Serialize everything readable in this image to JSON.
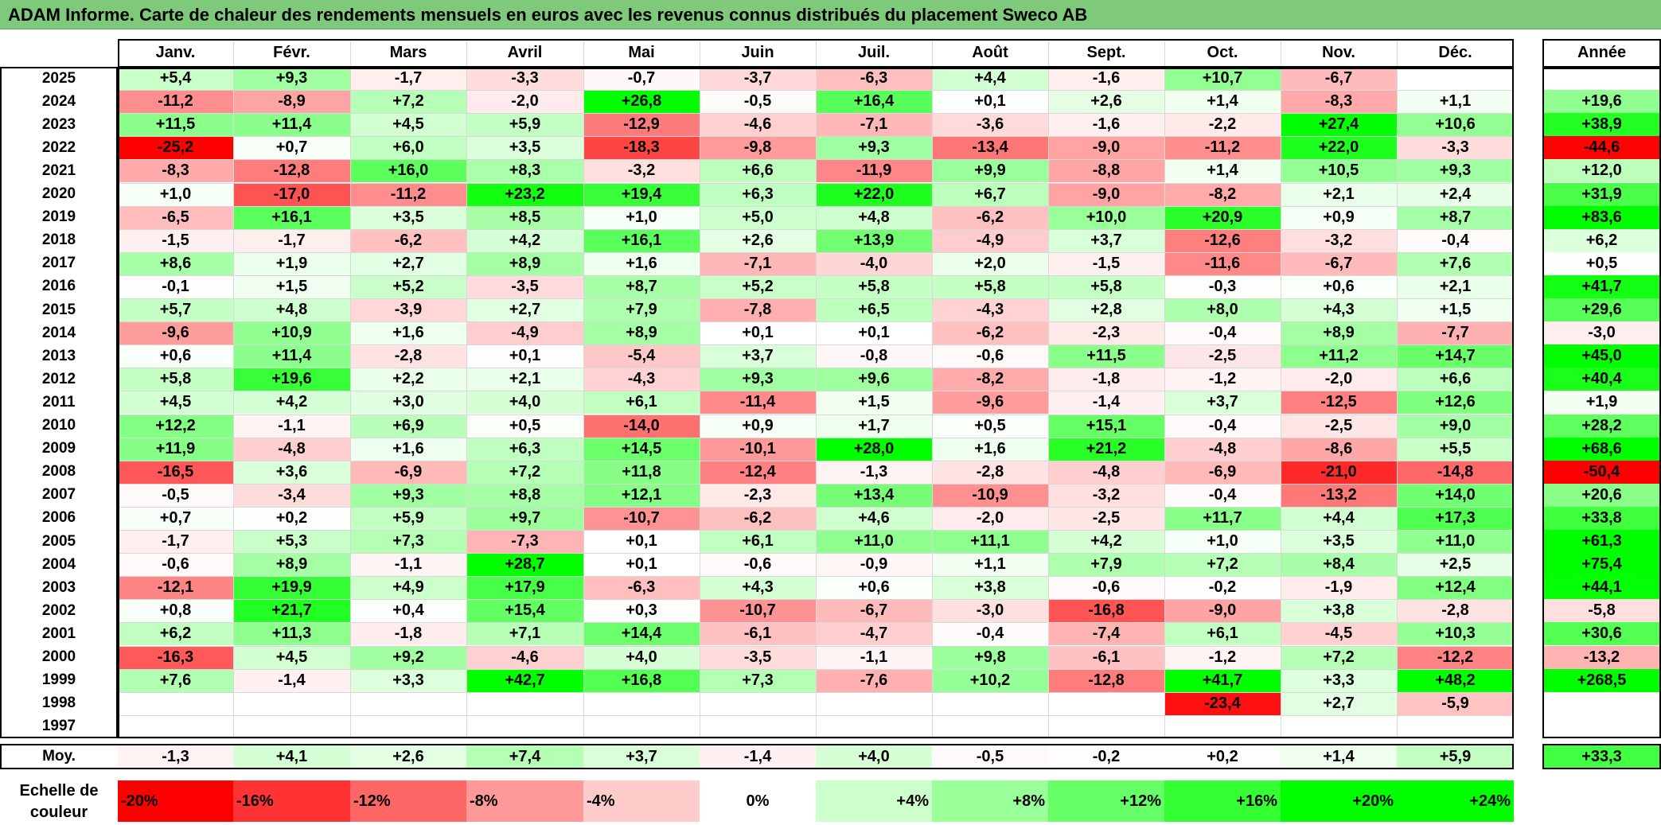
{
  "title": "ADAM Informe. Carte de chaleur des rendements mensuels en euros avec les revenus connus distribués du placement Sweco AB",
  "chart_data": {
    "type": "heatmap",
    "title": "ADAM Informe. Carte de chaleur des rendements mensuels en euros avec les revenus connus distribués du placement Sweco AB",
    "columns": [
      "Janv.",
      "Févr.",
      "Mars",
      "Avril",
      "Mai",
      "Juin",
      "Juil.",
      "Août",
      "Sept.",
      "Oct.",
      "Nov.",
      "Déc."
    ],
    "year_header": "Année",
    "rows": [
      {
        "year": "2025",
        "values": [
          "+5,4",
          "+9,3",
          "-1,7",
          "-3,3",
          "-0,7",
          "-3,7",
          "-6,3",
          "+4,4",
          "-1,6",
          "+10,7",
          "-6,7",
          ""
        ],
        "annual": ""
      },
      {
        "year": "2024",
        "values": [
          "-11,2",
          "-8,9",
          "+7,2",
          "-2,0",
          "+26,8",
          "-0,5",
          "+16,4",
          "+0,1",
          "+2,6",
          "+1,4",
          "-8,3",
          "+1,1"
        ],
        "annual": "+19,6"
      },
      {
        "year": "2023",
        "values": [
          "+11,5",
          "+11,4",
          "+4,5",
          "+5,9",
          "-12,9",
          "-4,6",
          "-7,1",
          "-3,6",
          "-1,6",
          "-2,2",
          "+27,4",
          "+10,6"
        ],
        "annual": "+38,9"
      },
      {
        "year": "2022",
        "values": [
          "-25,2",
          "+0,7",
          "+6,0",
          "+3,5",
          "-18,3",
          "-9,8",
          "+9,3",
          "-13,4",
          "-9,0",
          "-11,2",
          "+22,0",
          "-3,3"
        ],
        "annual": "-44,6"
      },
      {
        "year": "2021",
        "values": [
          "-8,3",
          "-12,8",
          "+16,0",
          "+8,3",
          "-3,2",
          "+6,6",
          "-11,9",
          "+9,9",
          "-8,8",
          "+1,4",
          "+10,5",
          "+9,3"
        ],
        "annual": "+12,0"
      },
      {
        "year": "2020",
        "values": [
          "+1,0",
          "-17,0",
          "-11,2",
          "+23,2",
          "+19,4",
          "+6,3",
          "+22,0",
          "+6,7",
          "-9,0",
          "-8,2",
          "+2,1",
          "+2,4"
        ],
        "annual": "+31,9"
      },
      {
        "year": "2019",
        "values": [
          "-6,5",
          "+16,1",
          "+3,5",
          "+8,5",
          "+1,0",
          "+5,0",
          "+4,8",
          "-6,2",
          "+10,0",
          "+20,9",
          "+0,9",
          "+8,7"
        ],
        "annual": "+83,6"
      },
      {
        "year": "2018",
        "values": [
          "-1,5",
          "-1,7",
          "-6,2",
          "+4,2",
          "+16,1",
          "+2,6",
          "+13,9",
          "-4,9",
          "+3,7",
          "-12,6",
          "-3,2",
          "-0,4"
        ],
        "annual": "+6,2"
      },
      {
        "year": "2017",
        "values": [
          "+8,6",
          "+1,9",
          "+2,7",
          "+8,9",
          "+1,6",
          "-7,1",
          "-4,0",
          "+2,0",
          "-1,5",
          "-11,6",
          "-6,7",
          "+7,6"
        ],
        "annual": "+0,5"
      },
      {
        "year": "2016",
        "values": [
          "-0,1",
          "+1,5",
          "+5,2",
          "-3,5",
          "+8,7",
          "+5,2",
          "+5,8",
          "+5,8",
          "+5,8",
          "-0,3",
          "+0,6",
          "+2,1"
        ],
        "annual": "+41,7"
      },
      {
        "year": "2015",
        "values": [
          "+5,7",
          "+4,8",
          "-3,9",
          "+2,7",
          "+7,9",
          "-7,8",
          "+6,5",
          "-4,3",
          "+2,8",
          "+8,0",
          "+4,3",
          "+1,5"
        ],
        "annual": "+29,6"
      },
      {
        "year": "2014",
        "values": [
          "-9,6",
          "+10,9",
          "+1,6",
          "-4,9",
          "+8,9",
          "+0,1",
          "+0,1",
          "-6,2",
          "-2,3",
          "-0,4",
          "+8,9",
          "-7,7"
        ],
        "annual": "-3,0"
      },
      {
        "year": "2013",
        "values": [
          "+0,6",
          "+11,4",
          "-2,8",
          "+0,1",
          "-5,4",
          "+3,7",
          "-0,8",
          "-0,6",
          "+11,5",
          "-2,5",
          "+11,2",
          "+14,7"
        ],
        "annual": "+45,0"
      },
      {
        "year": "2012",
        "values": [
          "+5,8",
          "+19,6",
          "+2,2",
          "+2,1",
          "-4,3",
          "+9,3",
          "+9,6",
          "-8,2",
          "-1,8",
          "-1,2",
          "-2,0",
          "+6,6"
        ],
        "annual": "+40,4"
      },
      {
        "year": "2011",
        "values": [
          "+4,5",
          "+4,2",
          "+3,0",
          "+4,0",
          "+6,1",
          "-11,4",
          "+1,5",
          "-9,6",
          "-1,4",
          "+3,7",
          "-12,5",
          "+12,6"
        ],
        "annual": "+1,9"
      },
      {
        "year": "2010",
        "values": [
          "+12,2",
          "-1,1",
          "+6,9",
          "+0,5",
          "-14,0",
          "+0,9",
          "+1,7",
          "+0,5",
          "+15,1",
          "-0,4",
          "-2,5",
          "+9,0"
        ],
        "annual": "+28,2"
      },
      {
        "year": "2009",
        "values": [
          "+11,9",
          "-4,8",
          "+1,6",
          "+6,3",
          "+14,5",
          "-10,1",
          "+28,0",
          "+1,6",
          "+21,2",
          "-4,8",
          "-8,6",
          "+5,5"
        ],
        "annual": "+68,6"
      },
      {
        "year": "2008",
        "values": [
          "-16,5",
          "+3,6",
          "-6,9",
          "+7,2",
          "+11,8",
          "-12,4",
          "-1,3",
          "-2,8",
          "-4,8",
          "-6,9",
          "-21,0",
          "-14,8"
        ],
        "annual": "-50,4"
      },
      {
        "year": "2007",
        "values": [
          "-0,5",
          "-3,4",
          "+9,3",
          "+8,8",
          "+12,1",
          "-2,3",
          "+13,4",
          "-10,9",
          "-3,2",
          "-0,4",
          "-13,2",
          "+14,0"
        ],
        "annual": "+20,6"
      },
      {
        "year": "2006",
        "values": [
          "+0,7",
          "+0,2",
          "+5,9",
          "+9,7",
          "-10,7",
          "-6,2",
          "+4,6",
          "-2,0",
          "-2,5",
          "+11,7",
          "+4,4",
          "+17,3"
        ],
        "annual": "+33,8"
      },
      {
        "year": "2005",
        "values": [
          "-1,7",
          "+5,3",
          "+7,3",
          "-7,3",
          "+0,1",
          "+6,1",
          "+11,0",
          "+11,1",
          "+4,2",
          "+1,0",
          "+3,5",
          "+11,0"
        ],
        "annual": "+61,3"
      },
      {
        "year": "2004",
        "values": [
          "-0,6",
          "+8,9",
          "-1,1",
          "+28,7",
          "+0,1",
          "-0,6",
          "-0,9",
          "+1,1",
          "+7,9",
          "+7,2",
          "+8,4",
          "+2,5"
        ],
        "annual": "+75,4"
      },
      {
        "year": "2003",
        "values": [
          "-12,1",
          "+19,9",
          "+4,9",
          "+17,9",
          "-6,3",
          "+4,3",
          "+0,6",
          "+3,8",
          "-0,6",
          "-0,2",
          "-1,9",
          "+12,4"
        ],
        "annual": "+44,1"
      },
      {
        "year": "2002",
        "values": [
          "+0,8",
          "+21,7",
          "+0,4",
          "+15,4",
          "+0,3",
          "-10,7",
          "-6,7",
          "-3,0",
          "-16,8",
          "-9,0",
          "+3,8",
          "-2,8"
        ],
        "annual": "-5,8"
      },
      {
        "year": "2001",
        "values": [
          "+6,2",
          "+11,3",
          "-1,8",
          "+7,1",
          "+14,4",
          "-6,1",
          "-4,7",
          "-0,4",
          "-7,4",
          "+6,1",
          "-4,5",
          "+10,3"
        ],
        "annual": "+30,6"
      },
      {
        "year": "2000",
        "values": [
          "-16,3",
          "+4,5",
          "+9,2",
          "-4,6",
          "+4,0",
          "-3,5",
          "-1,1",
          "+9,8",
          "-6,1",
          "-1,2",
          "+7,2",
          "-12,2"
        ],
        "annual": "-13,2"
      },
      {
        "year": "1999",
        "values": [
          "+7,6",
          "-1,4",
          "+3,3",
          "+42,7",
          "+16,8",
          "+7,3",
          "-7,6",
          "+10,2",
          "-12,8",
          "+41,7",
          "+3,3",
          "+48,2"
        ],
        "annual": "+268,5"
      },
      {
        "year": "1998",
        "values": [
          "",
          "",
          "",
          "",
          "",
          "",
          "",
          "",
          "",
          "-23,4",
          "+2,7",
          "-5,9"
        ],
        "annual": ""
      },
      {
        "year": "1997",
        "values": [
          "",
          "",
          "",
          "",
          "",
          "",
          "",
          "",
          "",
          "",
          "",
          ""
        ],
        "annual": ""
      }
    ],
    "average": {
      "label": "Moy.",
      "values": [
        "-1,3",
        "+4,1",
        "+2,6",
        "+7,4",
        "+3,7",
        "-1,4",
        "+4,0",
        "-0,5",
        "-0,2",
        "+0,2",
        "+1,4",
        "+5,9"
      ],
      "annual": "+33,3"
    },
    "scale": {
      "label": "Echelle de couleur",
      "steps": [
        "-20%",
        "-16%",
        "-12%",
        "-8%",
        "-4%",
        "0%",
        "+4%",
        "+8%",
        "+12%",
        "+16%",
        "+20%",
        "+24%"
      ]
    },
    "colors": {
      "title_bg": "#7fc97a",
      "neg_max": "#ff0000",
      "neutral": "#ffffff",
      "pos_max": "#00ff00"
    }
  }
}
